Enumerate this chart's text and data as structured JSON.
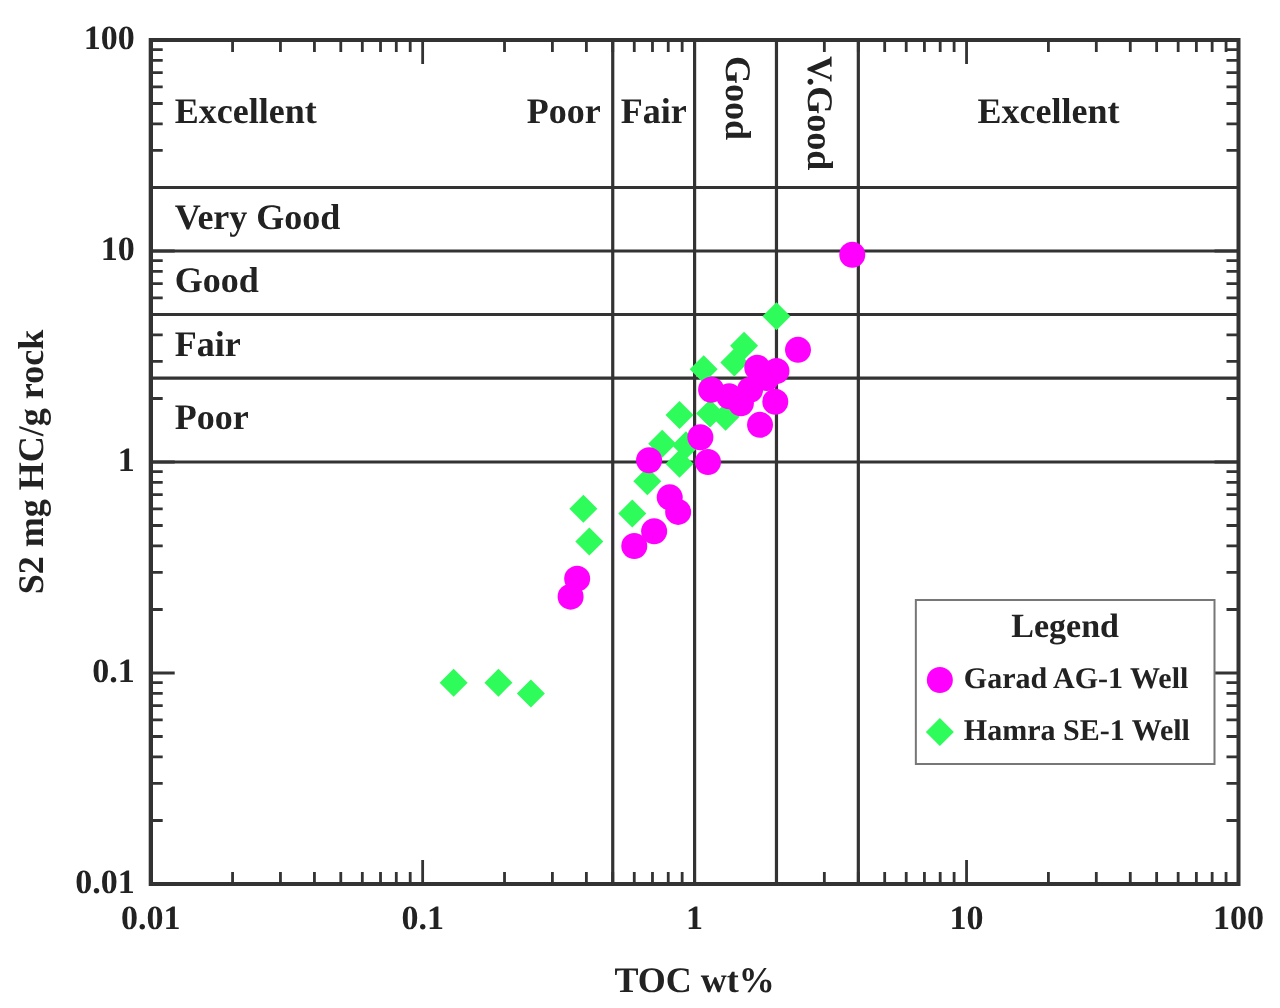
{
  "chart_data": {
    "type": "scatter",
    "xlabel": "TOC wt%",
    "ylabel": "S2 mg HC/g rock",
    "log": "xy",
    "grid": false,
    "legend": "bottom right",
    "legend_title": "Legend",
    "xlim": [
      0.01,
      100
    ],
    "ylim": [
      0.01,
      100
    ],
    "xticks": [
      0.01,
      {
        "value": 0.02,
        "label": null
      },
      {
        "value": 0.03,
        "label": null
      },
      {
        "value": 0.04,
        "label": null
      },
      {
        "value": 0.05,
        "label": null
      },
      {
        "value": 0.06,
        "label": null
      },
      {
        "value": 0.07,
        "label": null
      },
      {
        "value": 0.08,
        "label": null
      },
      {
        "value": 0.09,
        "label": null
      },
      0.1,
      {
        "value": 0.2,
        "label": null
      },
      {
        "value": 0.3,
        "label": null
      },
      {
        "value": 0.4,
        "label": null
      },
      {
        "value": 0.5,
        "label": null
      },
      {
        "value": 0.6,
        "label": null
      },
      {
        "value": 0.7,
        "label": null
      },
      {
        "value": 0.8,
        "label": null
      },
      {
        "value": 0.9,
        "label": null
      },
      1,
      {
        "value": 2,
        "label": null
      },
      {
        "value": 3,
        "label": null
      },
      {
        "value": 4,
        "label": null
      },
      {
        "value": 5,
        "label": null
      },
      {
        "value": 6,
        "label": null
      },
      {
        "value": 7,
        "label": null
      },
      {
        "value": 8,
        "label": null
      },
      {
        "value": 9,
        "label": null
      },
      10,
      {
        "value": 20,
        "label": null
      },
      {
        "value": 30,
        "label": null
      },
      {
        "value": 40,
        "label": null
      },
      {
        "value": 50,
        "label": null
      },
      {
        "value": 60,
        "label": null
      },
      {
        "value": 70,
        "label": null
      },
      {
        "value": 80,
        "label": null
      },
      {
        "value": 90,
        "label": null
      },
      100
    ],
    "yticks": [
      0.01,
      {
        "value": 0.02,
        "label": null
      },
      {
        "value": 0.03,
        "label": null
      },
      {
        "value": 0.04,
        "label": null
      },
      {
        "value": 0.05,
        "label": null
      },
      {
        "value": 0.06,
        "label": null
      },
      {
        "value": 0.07,
        "label": null
      },
      {
        "value": 0.08,
        "label": null
      },
      {
        "value": 0.09,
        "label": null
      },
      0.1,
      {
        "value": 0.2,
        "label": null
      },
      {
        "value": 0.3,
        "label": null
      },
      {
        "value": 0.4,
        "label": null
      },
      {
        "value": 0.5,
        "label": null
      },
      {
        "value": 0.6,
        "label": null
      },
      {
        "value": 0.7,
        "label": null
      },
      {
        "value": 0.8,
        "label": null
      },
      {
        "value": 0.9,
        "label": null
      },
      1,
      {
        "value": 2,
        "label": null
      },
      {
        "value": 3,
        "label": null
      },
      {
        "value": 4,
        "label": null
      },
      {
        "value": 5,
        "label": null
      },
      {
        "value": 6,
        "label": null
      },
      {
        "value": 7,
        "label": null
      },
      {
        "value": 8,
        "label": null
      },
      {
        "value": 9,
        "label": null
      },
      10,
      {
        "value": 20,
        "label": null
      },
      {
        "value": 30,
        "label": null
      },
      {
        "value": 40,
        "label": null
      },
      {
        "value": 50,
        "label": null
      },
      {
        "value": 60,
        "label": null
      },
      {
        "value": 70,
        "label": null
      },
      {
        "value": 80,
        "label": null
      },
      {
        "value": 90,
        "label": null
      },
      100
    ],
    "ref_lines": [
      {
        "axis": "x",
        "value": 0.5,
        "color": "#333333"
      },
      {
        "axis": "x",
        "value": 1,
        "color": "#333333"
      },
      {
        "axis": "x",
        "value": 2,
        "color": "#333333"
      },
      {
        "axis": "x",
        "value": 4,
        "color": "#333333"
      },
      {
        "axis": "y",
        "value": 1,
        "color": "#333333"
      },
      {
        "axis": "y",
        "value": 2.5,
        "color": "#333333"
      },
      {
        "axis": "y",
        "value": 5,
        "color": "#333333"
      },
      {
        "axis": "y",
        "value": 10,
        "color": "#333333"
      },
      {
        "axis": "y",
        "value": 20,
        "color": "#333333"
      }
    ],
    "annotations": [
      "Excellent",
      "Poor",
      "Fair",
      "Good",
      "V.Good",
      "Excellent",
      "Very Good",
      "Good",
      "Fair",
      "Poor"
    ],
    "series": [
      {
        "name": "Garad AG-1 Well",
        "color": "#ff00ff",
        "marker": "circle",
        "x": [
          0.35,
          0.37,
          0.6,
          3.8,
          2.4,
          2.0,
          1.7,
          1.98,
          1.74,
          1.48,
          1.6,
          1.15,
          1.34,
          1.05,
          1.12,
          0.68,
          0.81,
          0.87,
          0.71,
          1.84
        ],
        "values": [
          0.23,
          0.28,
          0.4,
          9.6,
          3.4,
          2.7,
          2.8,
          1.93,
          1.5,
          1.9,
          2.2,
          2.2,
          2.05,
          1.31,
          1.0,
          1.02,
          0.68,
          0.58,
          0.47,
          2.5
        ]
      },
      {
        "name": "Hamra SE-1 Well",
        "color": "#2efc5a",
        "marker": "diamond",
        "x": [
          0.13,
          0.19,
          0.25,
          0.39,
          0.41,
          0.59,
          2.0,
          1.52,
          1.4,
          1.08,
          1.3,
          1.14,
          0.88,
          0.76,
          0.88,
          0.67,
          0.93
        ],
        "values": [
          0.09,
          0.09,
          0.08,
          0.6,
          0.42,
          0.57,
          4.9,
          3.56,
          2.96,
          2.75,
          1.64,
          1.7,
          1.67,
          1.22,
          0.98,
          0.81,
          1.2
        ]
      }
    ]
  }
}
